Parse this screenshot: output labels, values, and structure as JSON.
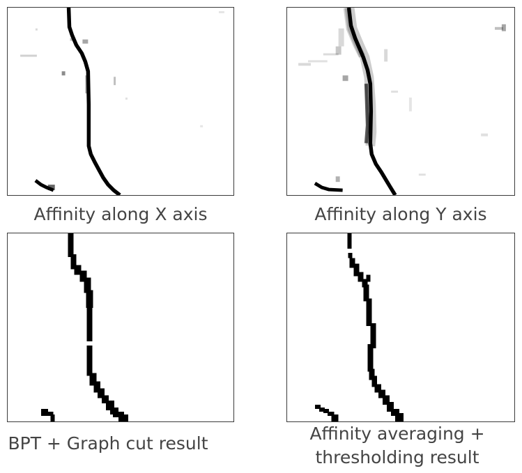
{
  "panels": [
    {
      "id": "p1",
      "caption": "Affinity along X axis"
    },
    {
      "id": "p2",
      "caption": "Affinity along Y axis"
    },
    {
      "id": "p3",
      "caption": "BPT + Graph cut result"
    },
    {
      "id": "p4",
      "caption_line1": "Affinity averaging +",
      "caption_line2": "thresholding result"
    }
  ],
  "colors": {
    "border": "#3a3a3a",
    "caption_text": "#444444",
    "stroke": "#000000",
    "background": "#ffffff"
  }
}
